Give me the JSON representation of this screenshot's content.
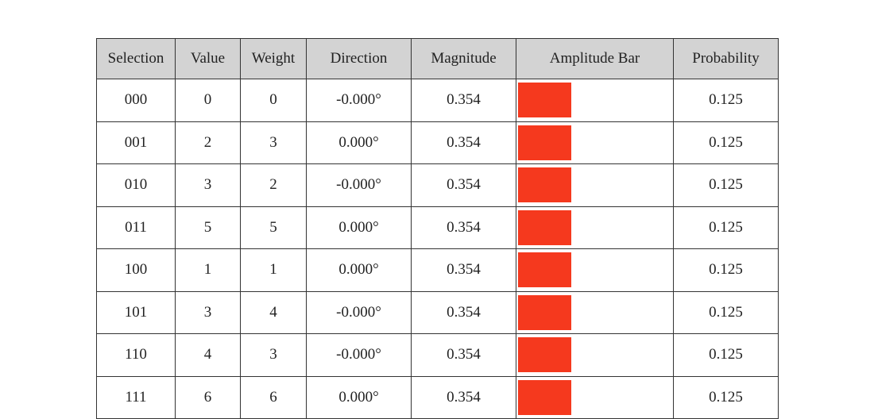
{
  "table": {
    "columns": [
      "Selection",
      "Value",
      "Weight",
      "Direction",
      "Magnitude",
      "Amplitude Bar",
      "Probability"
    ],
    "rows": [
      {
        "selection": "000",
        "value": 0,
        "weight": 0,
        "direction": "-0.000°",
        "magnitude": 0.354,
        "probability": 0.125
      },
      {
        "selection": "001",
        "value": 2,
        "weight": 3,
        "direction": "0.000°",
        "magnitude": 0.354,
        "probability": 0.125
      },
      {
        "selection": "010",
        "value": 3,
        "weight": 2,
        "direction": "-0.000°",
        "magnitude": 0.354,
        "probability": 0.125
      },
      {
        "selection": "011",
        "value": 5,
        "weight": 5,
        "direction": "0.000°",
        "magnitude": 0.354,
        "probability": 0.125
      },
      {
        "selection": "100",
        "value": 1,
        "weight": 1,
        "direction": "0.000°",
        "magnitude": 0.354,
        "probability": 0.125
      },
      {
        "selection": "101",
        "value": 3,
        "weight": 4,
        "direction": "-0.000°",
        "magnitude": 0.354,
        "probability": 0.125
      },
      {
        "selection": "110",
        "value": 4,
        "weight": 3,
        "direction": "-0.000°",
        "magnitude": 0.354,
        "probability": 0.125
      },
      {
        "selection": "111",
        "value": 6,
        "weight": 6,
        "direction": "0.000°",
        "magnitude": 0.354,
        "probability": 0.125
      }
    ]
  }
}
